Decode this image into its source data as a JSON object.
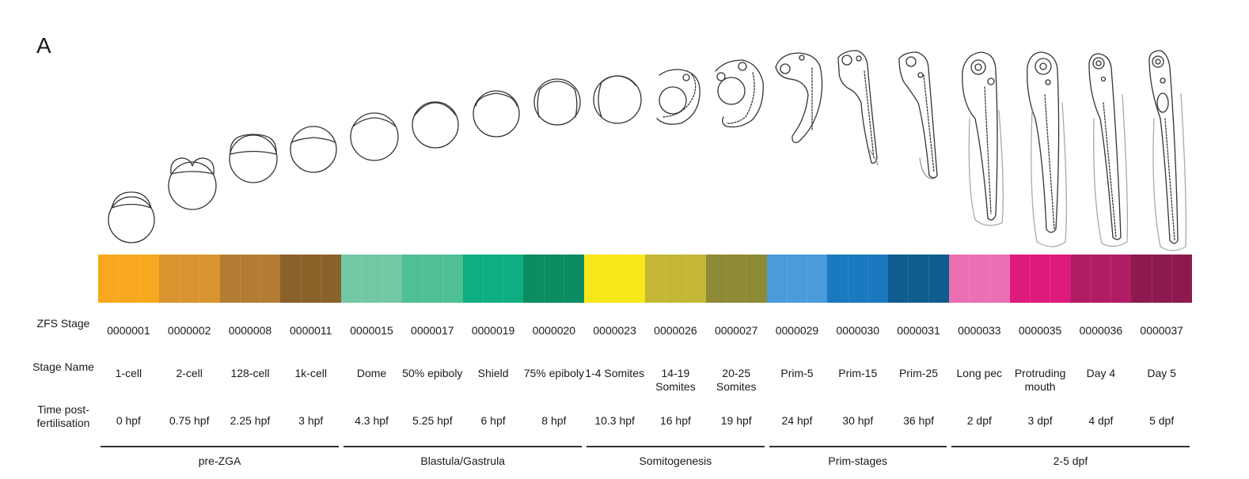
{
  "panel_label": "A",
  "row_labels": {
    "zfs_stage": "ZFS Stage",
    "stage_name": "Stage Name",
    "time": "Time post-fertilisation"
  },
  "stages": [
    {
      "zfs": "0000001",
      "name": "1-cell",
      "time": "0 hpf",
      "color": "#F7A81E"
    },
    {
      "zfs": "0000002",
      "name": "2-cell",
      "time": "0.75 hpf",
      "color": "#D8952F"
    },
    {
      "zfs": "0000008",
      "name": "128-cell",
      "time": "2.25 hpf",
      "color": "#B27D33"
    },
    {
      "zfs": "0000011",
      "name": "1k-cell",
      "time": "3 hpf",
      "color": "#8B612A"
    },
    {
      "zfs": "0000015",
      "name": "Dome",
      "time": "4.3 hpf",
      "color": "#72C8A2"
    },
    {
      "zfs": "0000017",
      "name": "50% epiboly",
      "time": "5.25 hpf",
      "color": "#4FBF96"
    },
    {
      "zfs": "0000019",
      "name": "Shield",
      "time": "6 hpf",
      "color": "#0DAE82"
    },
    {
      "zfs": "0000020",
      "name": "75% epiboly",
      "time": "8 hpf",
      "color": "#0B8C62"
    },
    {
      "zfs": "0000023",
      "name": "1-4 Somites",
      "time": "10.3 hpf",
      "color": "#F8E81A"
    },
    {
      "zfs": "0000026",
      "name": "14-19 Somites",
      "time": "16 hpf",
      "color": "#C4B735"
    },
    {
      "zfs": "0000027",
      "name": "20-25 Somites",
      "time": "19 hpf",
      "color": "#8F8A36"
    },
    {
      "zfs": "0000029",
      "name": "Prim-5",
      "time": "24 hpf",
      "color": "#4A9BD9"
    },
    {
      "zfs": "0000030",
      "name": "Prim-15",
      "time": "30 hpf",
      "color": "#1A79BF"
    },
    {
      "zfs": "0000031",
      "name": "Prim-25",
      "time": "36 hpf",
      "color": "#0F5C8E"
    },
    {
      "zfs": "0000033",
      "name": "Long pec",
      "time": "2 dpf",
      "color": "#EB6FB2"
    },
    {
      "zfs": "0000035",
      "name": "Protruding mouth",
      "time": "3 dpf",
      "color": "#DE1A7C"
    },
    {
      "zfs": "0000036",
      "name": "Day 4",
      "time": "4 dpf",
      "color": "#B11D64"
    },
    {
      "zfs": "0000037",
      "name": "Day 5",
      "time": "5 dpf",
      "color": "#8D1A4E"
    }
  ],
  "groups": [
    {
      "label": "pre-ZGA",
      "span": 4
    },
    {
      "label": "Blastula/Gastrula",
      "span": 4
    },
    {
      "label": "Somitogenesis",
      "span": 3
    },
    {
      "label": "Prim-stages",
      "span": 3
    },
    {
      "label": "2-5 dpf",
      "span": 4
    }
  ]
}
